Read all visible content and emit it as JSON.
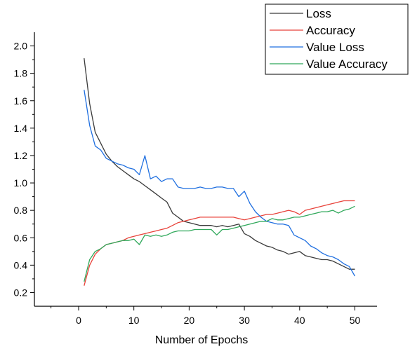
{
  "chart_data": {
    "type": "line",
    "title": "",
    "xlabel": "Number of Epochs",
    "ylabel": "",
    "xlim": [
      -8,
      54
    ],
    "ylim": [
      0.1,
      2.1
    ],
    "xticks": [
      0,
      10,
      20,
      30,
      40,
      50
    ],
    "xtick_labels": [
      "0",
      "10",
      "20",
      "30",
      "40",
      "50"
    ],
    "yticks": [
      0.2,
      0.4,
      0.6,
      0.8,
      1.0,
      1.2,
      1.4,
      1.6,
      1.8,
      2.0
    ],
    "ytick_labels": [
      "0.2",
      "0.4",
      "0.6",
      "0.8",
      "1.0",
      "1.2",
      "1.4",
      "1.6",
      "1.8",
      "2.0"
    ],
    "grid": false,
    "legend_position": "top-right",
    "x": [
      1,
      2,
      3,
      4,
      5,
      6,
      7,
      8,
      9,
      10,
      11,
      12,
      13,
      14,
      15,
      16,
      17,
      18,
      19,
      20,
      21,
      22,
      23,
      24,
      25,
      26,
      27,
      28,
      29,
      30,
      31,
      32,
      33,
      34,
      35,
      36,
      37,
      38,
      39,
      40,
      41,
      42,
      43,
      44,
      45,
      46,
      47,
      48,
      49,
      50
    ],
    "series": [
      {
        "name": "Loss",
        "color": "#3a3a3a",
        "values": [
          1.91,
          1.58,
          1.37,
          1.29,
          1.21,
          1.16,
          1.12,
          1.09,
          1.06,
          1.03,
          1.01,
          0.98,
          0.95,
          0.92,
          0.89,
          0.86,
          0.78,
          0.75,
          0.72,
          0.71,
          0.7,
          0.69,
          0.69,
          0.69,
          0.68,
          0.69,
          0.68,
          0.69,
          0.7,
          0.63,
          0.61,
          0.58,
          0.56,
          0.54,
          0.53,
          0.51,
          0.5,
          0.48,
          0.49,
          0.5,
          0.47,
          0.46,
          0.45,
          0.44,
          0.44,
          0.43,
          0.41,
          0.39,
          0.37,
          0.37
        ]
      },
      {
        "name": "Accuracy",
        "color": "#e8423a",
        "values": [
          0.25,
          0.4,
          0.48,
          0.52,
          0.55,
          0.56,
          0.57,
          0.58,
          0.6,
          0.61,
          0.62,
          0.63,
          0.64,
          0.65,
          0.66,
          0.67,
          0.69,
          0.71,
          0.72,
          0.73,
          0.74,
          0.75,
          0.75,
          0.75,
          0.75,
          0.75,
          0.75,
          0.75,
          0.74,
          0.73,
          0.74,
          0.75,
          0.76,
          0.77,
          0.77,
          0.78,
          0.79,
          0.8,
          0.79,
          0.77,
          0.8,
          0.81,
          0.82,
          0.83,
          0.84,
          0.85,
          0.86,
          0.87,
          0.87,
          0.87
        ]
      },
      {
        "name": "Value Loss",
        "color": "#1f6fe0",
        "values": [
          1.68,
          1.42,
          1.27,
          1.24,
          1.18,
          1.16,
          1.14,
          1.13,
          1.11,
          1.1,
          1.06,
          1.2,
          1.03,
          1.05,
          1.01,
          1.03,
          1.03,
          0.97,
          0.96,
          0.96,
          0.96,
          0.97,
          0.96,
          0.96,
          0.97,
          0.97,
          0.96,
          0.96,
          0.9,
          0.94,
          0.85,
          0.79,
          0.75,
          0.72,
          0.71,
          0.7,
          0.7,
          0.69,
          0.62,
          0.6,
          0.58,
          0.54,
          0.52,
          0.49,
          0.47,
          0.46,
          0.44,
          0.41,
          0.39,
          0.32
        ]
      },
      {
        "name": "Value Accuracy",
        "color": "#2fa85a",
        "values": [
          0.28,
          0.44,
          0.5,
          0.52,
          0.55,
          0.56,
          0.57,
          0.58,
          0.58,
          0.59,
          0.55,
          0.62,
          0.61,
          0.62,
          0.61,
          0.62,
          0.64,
          0.65,
          0.65,
          0.65,
          0.66,
          0.66,
          0.66,
          0.66,
          0.62,
          0.66,
          0.66,
          0.67,
          0.68,
          0.69,
          0.7,
          0.71,
          0.72,
          0.72,
          0.74,
          0.73,
          0.73,
          0.74,
          0.75,
          0.75,
          0.76,
          0.77,
          0.78,
          0.79,
          0.79,
          0.8,
          0.78,
          0.8,
          0.81,
          0.83
        ]
      }
    ]
  }
}
